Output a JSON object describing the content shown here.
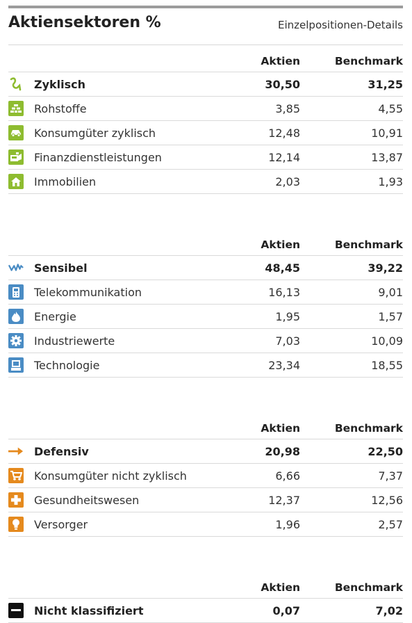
{
  "header": {
    "title": "Aktiensektoren %",
    "link": "Einzelpositionen-Details"
  },
  "columns": {
    "col1": "Aktien",
    "col2": "Benchmark"
  },
  "colors": {
    "cyclical": "#8ebc30",
    "sensitive": "#4a8cc4",
    "defensive": "#e58a1e",
    "unclassified": "#111111"
  },
  "groups": [
    {
      "name": "Zyklisch",
      "aktien": "30,50",
      "benchmark": "31,25",
      "icon": "cyclical-wave-icon",
      "items": [
        {
          "name": "Rohstoffe",
          "aktien": "3,85",
          "benchmark": "4,55",
          "icon": "bricks-icon"
        },
        {
          "name": "Konsumgüter zyklisch",
          "aktien": "12,48",
          "benchmark": "10,91",
          "icon": "car-icon"
        },
        {
          "name": "Finanzdienstleistungen",
          "aktien": "12,14",
          "benchmark": "13,87",
          "icon": "finance-icon"
        },
        {
          "name": "Immobilien",
          "aktien": "2,03",
          "benchmark": "1,93",
          "icon": "house-icon"
        }
      ]
    },
    {
      "name": "Sensibel",
      "aktien": "48,45",
      "benchmark": "39,22",
      "icon": "sensitive-zigzag-icon",
      "items": [
        {
          "name": "Telekommunikation",
          "aktien": "16,13",
          "benchmark": "9,01",
          "icon": "phone-icon"
        },
        {
          "name": "Energie",
          "aktien": "1,95",
          "benchmark": "1,57",
          "icon": "flame-icon"
        },
        {
          "name": "Industriewerte",
          "aktien": "7,03",
          "benchmark": "10,09",
          "icon": "gear-icon"
        },
        {
          "name": "Technologie",
          "aktien": "23,34",
          "benchmark": "18,55",
          "icon": "computer-icon"
        }
      ]
    },
    {
      "name": "Defensiv",
      "aktien": "20,98",
      "benchmark": "22,50",
      "icon": "defensive-arrow-icon",
      "items": [
        {
          "name": "Konsumgüter nicht zyklisch",
          "aktien": "6,66",
          "benchmark": "7,37",
          "icon": "cart-icon"
        },
        {
          "name": "Gesundheitswesen",
          "aktien": "12,37",
          "benchmark": "12,56",
          "icon": "health-cross-icon"
        },
        {
          "name": "Versorger",
          "aktien": "1,96",
          "benchmark": "2,57",
          "icon": "lightbulb-icon"
        }
      ]
    },
    {
      "name": "Nicht klassifiziert",
      "aktien": "0,07",
      "benchmark": "7,02",
      "icon": "minus-icon",
      "items": []
    }
  ]
}
